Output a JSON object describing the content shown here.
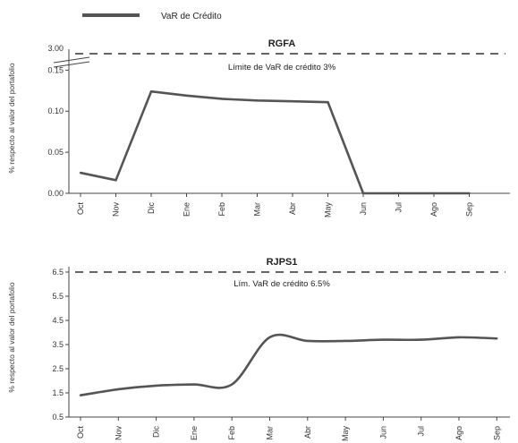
{
  "legend": {
    "label": "VaR de Crédito",
    "color": "#555555"
  },
  "chart_data": [
    {
      "type": "line",
      "title": "RGFA",
      "ylabel": "% respecto al valor del portafolio",
      "categories": [
        "Oct",
        "Nov",
        "Dic",
        "Ene",
        "Feb",
        "Mar",
        "Abr",
        "May",
        "Jun",
        "Jul",
        "Ago",
        "Sep"
      ],
      "ylim": [
        0,
        0.17
      ],
      "axis_break": true,
      "ytick_labels": [
        "0.00",
        "0.05",
        "0.10",
        "0.15",
        "3.00"
      ],
      "yticks": [
        0,
        0.05,
        0.1,
        0.15
      ],
      "series": [
        {
          "name": "VaR de Crédito",
          "values": [
            0.025,
            0.016,
            0.124,
            0.119,
            0.115,
            0.113,
            0.112,
            0.111,
            0.0,
            0.0,
            0.0,
            0.0
          ]
        }
      ],
      "limit": {
        "label": "Límite de VaR de crédito 3%",
        "value": 3.0
      }
    },
    {
      "type": "line",
      "title": "RJPS1",
      "ylabel": "% respecto al valor del portafolio",
      "categories": [
        "Oct",
        "Nov",
        "Dic",
        "Ene",
        "Feb",
        "Mar",
        "Abr",
        "May",
        "Jun",
        "Jul",
        "Ago",
        "Sep"
      ],
      "ylim": [
        0.5,
        6.5
      ],
      "ytick_labels": [
        "0.5",
        "1.5",
        "2.5",
        "3.5",
        "4.5",
        "5.5",
        "6.5"
      ],
      "yticks": [
        0.5,
        1.5,
        2.5,
        3.5,
        4.5,
        5.5,
        6.5
      ],
      "series": [
        {
          "name": "VaR de Crédito",
          "values": [
            1.4,
            1.65,
            1.8,
            1.85,
            1.85,
            3.8,
            3.65,
            3.65,
            3.7,
            3.7,
            3.8,
            3.75
          ]
        }
      ],
      "limit": {
        "label": "Lím. VaR de crédito 6.5%",
        "value": 6.5
      }
    }
  ]
}
